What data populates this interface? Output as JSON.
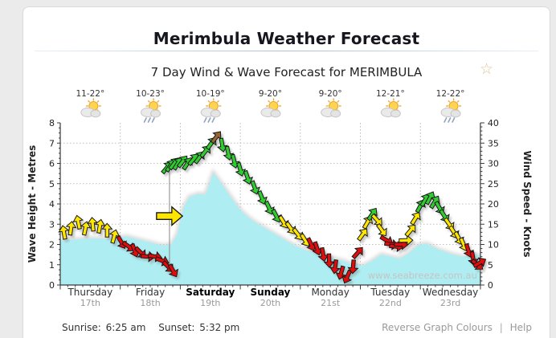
{
  "page": {
    "title": "Merimbula Weather Forecast",
    "subtitle": "7 Day Wind & Wave Forecast for MERIMBULA",
    "star_icon": "☆",
    "sunrise_label": "Sunrise:",
    "sunrise_time": "6:25 am",
    "sunset_label": "Sunset:",
    "sunset_time": "5:32 pm",
    "links": {
      "reverse": "Reverse Graph Colours",
      "separator": "|",
      "help": "Help"
    },
    "watermark": "www.seabreeze.com.au"
  },
  "chart_data": {
    "type": "line",
    "title": "7 Day Wind & Wave Forecast for MERIMBULA",
    "grid": "dotted",
    "y_left": {
      "label": "Wave Height - Metres",
      "min": 0,
      "max": 8,
      "tick_step": 1,
      "minor_step": 0.25
    },
    "y_right": {
      "label": "Wind Speed - Knots",
      "min": 0,
      "max": 40,
      "tick_step": 5,
      "minor_step": 1
    },
    "days": [
      {
        "name": "Thursday",
        "date": "17th",
        "temp": "11-22°",
        "icon": "sun-cloud",
        "bold": false
      },
      {
        "name": "Friday",
        "date": "18th",
        "temp": "10-23°",
        "icon": "sun-cloud-rain",
        "bold": false
      },
      {
        "name": "Saturday",
        "date": "19th",
        "temp": "10-19°",
        "icon": "sun-cloud-rain",
        "bold": true
      },
      {
        "name": "Sunday",
        "date": "20th",
        "temp": "9-20°",
        "icon": "sun-cloud",
        "bold": true
      },
      {
        "name": "Monday",
        "date": "21st",
        "temp": "9-20°",
        "icon": "sun-cloud",
        "bold": false
      },
      {
        "name": "Tuesday",
        "date": "22nd",
        "temp": "12-21°",
        "icon": "sun-cloud",
        "bold": false
      },
      {
        "name": "Wednesday",
        "date": "23rd",
        "temp": "12-22°",
        "icon": "sun-cloud-rain",
        "bold": false
      }
    ],
    "series": [
      {
        "name": "Wave Height (m)",
        "type": "area",
        "axis": "left",
        "points": [
          [
            0,
            2.2
          ],
          [
            0.25,
            2.25
          ],
          [
            0.5,
            2.3
          ],
          [
            0.75,
            2.28
          ],
          [
            1.0,
            2.35
          ],
          [
            1.1,
            2.4
          ],
          [
            1.3,
            2.25
          ],
          [
            1.5,
            2.1
          ],
          [
            1.7,
            1.95
          ],
          [
            1.85,
            2.0
          ],
          [
            1.95,
            2.5
          ],
          [
            2.05,
            3.8
          ],
          [
            2.15,
            4.35
          ],
          [
            2.3,
            4.5
          ],
          [
            2.42,
            4.45
          ],
          [
            2.55,
            5.55
          ],
          [
            2.7,
            4.95
          ],
          [
            2.85,
            4.3
          ],
          [
            3.0,
            3.7
          ],
          [
            3.15,
            3.3
          ],
          [
            3.3,
            3.0
          ],
          [
            3.5,
            2.65
          ],
          [
            3.7,
            2.3
          ],
          [
            3.9,
            1.95
          ],
          [
            4.1,
            1.7
          ],
          [
            4.3,
            1.5
          ],
          [
            4.5,
            1.35
          ],
          [
            4.7,
            1.2
          ],
          [
            4.9,
            1.0
          ],
          [
            5.05,
            0.95
          ],
          [
            5.2,
            1.2
          ],
          [
            5.35,
            1.5
          ],
          [
            5.5,
            1.4
          ],
          [
            5.65,
            1.3
          ],
          [
            5.8,
            1.55
          ],
          [
            5.95,
            1.95
          ],
          [
            6.1,
            2.05
          ],
          [
            6.3,
            1.75
          ],
          [
            6.5,
            1.55
          ],
          [
            6.7,
            1.4
          ],
          [
            6.85,
            1.45
          ],
          [
            7,
            1.5
          ]
        ]
      },
      {
        "name": "Wind Speed (knots)",
        "type": "wind-arrows",
        "axis": "right",
        "points": [
          [
            0.06,
            13,
            "y",
            -10
          ],
          [
            0.18,
            14,
            "y",
            8
          ],
          [
            0.3,
            15.5,
            "y",
            -12
          ],
          [
            0.42,
            14,
            "y",
            12
          ],
          [
            0.54,
            15,
            "y",
            -6
          ],
          [
            0.66,
            14.5,
            "y",
            10
          ],
          [
            0.78,
            13.5,
            "y",
            0
          ],
          [
            0.9,
            12,
            "y",
            15
          ],
          [
            1.02,
            10.5,
            "r",
            150
          ],
          [
            1.14,
            9.5,
            "r",
            125
          ],
          [
            1.24,
            8.5,
            "r",
            160
          ],
          [
            1.34,
            8,
            "r",
            135
          ],
          [
            1.46,
            7,
            "r",
            95
          ],
          [
            1.58,
            7,
            "r",
            100
          ],
          [
            1.7,
            6,
            "r",
            110
          ],
          [
            1.8,
            4.5,
            "r",
            135
          ],
          [
            1.88,
            3.5,
            "r",
            150
          ],
          [
            1.78,
            29,
            "g",
            40
          ],
          [
            1.84,
            29.5,
            "g",
            34
          ],
          [
            1.9,
            30,
            "g",
            38
          ],
          [
            1.96,
            30,
            "g",
            32
          ],
          [
            2.04,
            30.5,
            "g",
            38
          ],
          [
            2.12,
            30,
            "g",
            34
          ],
          [
            2.22,
            31,
            "g",
            40
          ],
          [
            2.32,
            31.5,
            "g",
            36
          ],
          [
            2.42,
            33,
            "g",
            38
          ],
          [
            2.52,
            35,
            "g",
            36
          ],
          [
            2.6,
            36.5,
            "br",
            38
          ],
          [
            2.7,
            34.5,
            "g",
            170
          ],
          [
            2.8,
            32.5,
            "g",
            168
          ],
          [
            2.9,
            30.5,
            "g",
            166
          ],
          [
            3.0,
            28.5,
            "g",
            164
          ],
          [
            3.12,
            26.5,
            "g",
            162
          ],
          [
            3.24,
            24,
            "g",
            160
          ],
          [
            3.36,
            21.5,
            "g",
            158
          ],
          [
            3.48,
            19,
            "g",
            155
          ],
          [
            3.6,
            17,
            "g",
            152
          ],
          [
            3.72,
            15.5,
            "y",
            148
          ],
          [
            3.84,
            14,
            "y",
            144
          ],
          [
            3.96,
            12.5,
            "y",
            142
          ],
          [
            4.08,
            11,
            "y",
            148
          ],
          [
            4.18,
            10,
            "r",
            155
          ],
          [
            4.28,
            9,
            "r",
            162
          ],
          [
            4.38,
            7.5,
            "r",
            170
          ],
          [
            4.48,
            6,
            "r",
            178
          ],
          [
            4.58,
            4.5,
            "r",
            188
          ],
          [
            4.68,
            3,
            "r",
            196
          ],
          [
            4.78,
            2,
            "r",
            204
          ],
          [
            4.88,
            4.5,
            "r",
            185
          ],
          [
            4.96,
            8,
            "r",
            42
          ],
          [
            5.04,
            12.5,
            "y",
            36
          ],
          [
            5.12,
            15.5,
            "y",
            30
          ],
          [
            5.2,
            17.5,
            "g",
            34
          ],
          [
            5.28,
            16,
            "y",
            138
          ],
          [
            5.36,
            13.5,
            "y",
            144
          ],
          [
            5.44,
            11,
            "r",
            120
          ],
          [
            5.52,
            10,
            "r",
            100
          ],
          [
            5.6,
            9.5,
            "r",
            95
          ],
          [
            5.68,
            10,
            "r",
            92
          ],
          [
            5.76,
            11,
            "y",
            88
          ],
          [
            5.84,
            13.5,
            "y",
            40
          ],
          [
            5.92,
            16.5,
            "y",
            32
          ],
          [
            6.0,
            19.5,
            "g",
            28
          ],
          [
            6.08,
            21,
            "g",
            30
          ],
          [
            6.16,
            21.5,
            "g",
            28
          ],
          [
            6.24,
            20.5,
            "g",
            32
          ],
          [
            6.32,
            19,
            "g",
            150
          ],
          [
            6.4,
            17,
            "g",
            148
          ],
          [
            6.48,
            15,
            "y",
            145
          ],
          [
            6.56,
            13,
            "y",
            148
          ],
          [
            6.64,
            11.5,
            "y",
            152
          ],
          [
            6.72,
            10,
            "y",
            156
          ],
          [
            6.8,
            8.5,
            "r",
            162
          ],
          [
            6.88,
            6.5,
            "r",
            170
          ],
          [
            6.95,
            5,
            "r",
            130
          ],
          [
            6.99,
            5.5,
            "r",
            60
          ]
        ]
      }
    ],
    "wind_change": {
      "d": 1.82,
      "from_kn": 4,
      "to_kn": 29.5,
      "marker_kn": 17,
      "marker_dir": 90,
      "marker_color": "y"
    },
    "colors": {
      "y": "#ffe600",
      "r": "#e01010",
      "g": "#33cc33",
      "br": "#9a6530",
      "wave": "#aeeef2",
      "grid": "#c0c0c0",
      "axis": "#3a3a3a",
      "day_label": "#333333",
      "day_label_weekend": "#000000",
      "date_label": "#9a9a9a",
      "watermark": "#c8c2c2"
    }
  }
}
